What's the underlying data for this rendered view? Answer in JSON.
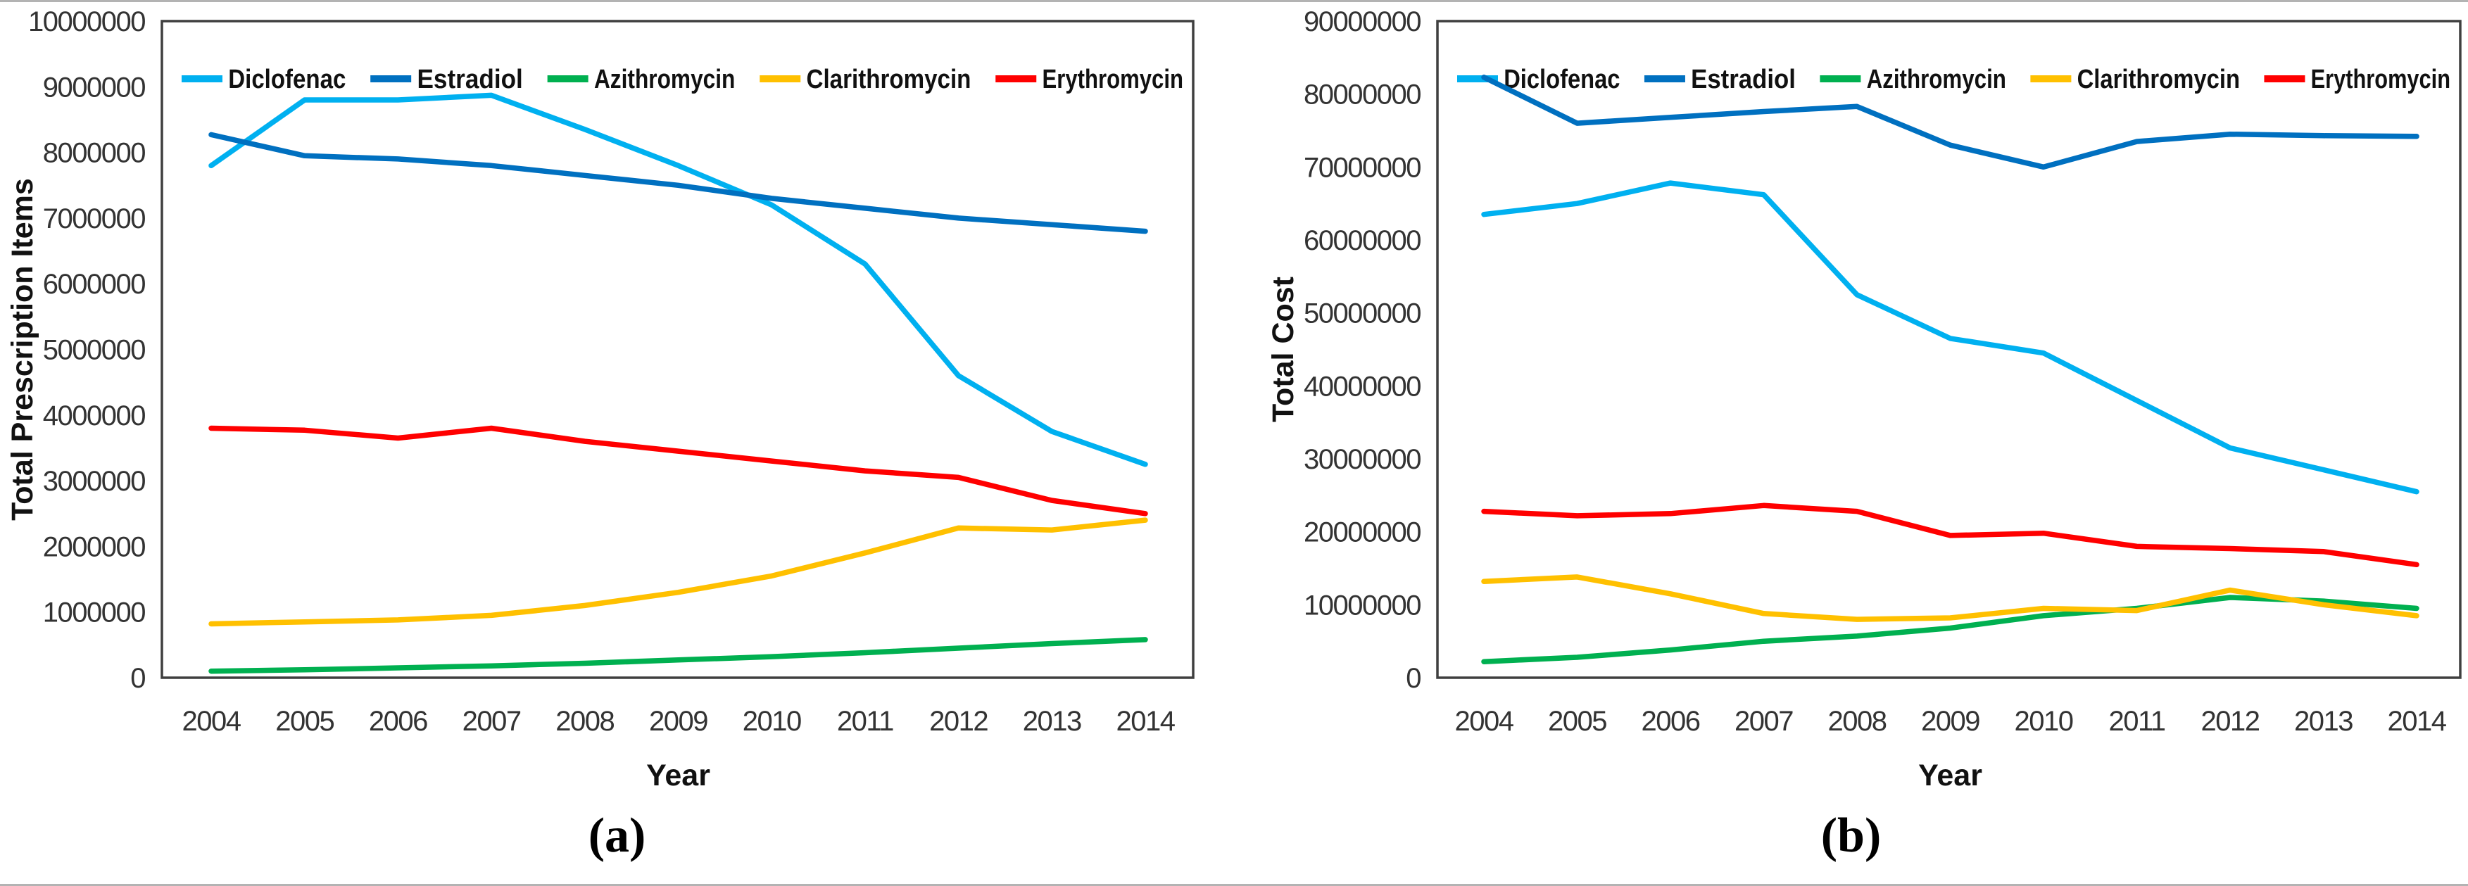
{
  "figure": {
    "description": "Two-panel line chart comparing five drugs from 2004 to 2014",
    "panel_captions": [
      "(a)",
      "(b)"
    ]
  },
  "colors": {
    "diclofenac": "#00B0F0",
    "estradiol": "#0070C0",
    "azithromycin": "#00B050",
    "clarithromycin": "#FFC000",
    "erythromycin": "#FF0000",
    "plot_border": "#3f3f3f",
    "tick_text": "#333333",
    "page_rule": "#b3b3b3"
  },
  "chart_data": [
    {
      "id": "a",
      "type": "line",
      "caption": "(a)",
      "xlabel": "Year",
      "ylabel": "Total Prescription Items",
      "x": [
        2004,
        2005,
        2006,
        2007,
        2008,
        2009,
        2010,
        2011,
        2012,
        2013,
        2014
      ],
      "x_labels": [
        "2004",
        "2005",
        "2006",
        "2007",
        "2008",
        "2009",
        "2010",
        "2011",
        "2012",
        "2013",
        "2014"
      ],
      "ylim": [
        0,
        10000000
      ],
      "ytick_step": 1000000,
      "yticks": [
        "0",
        "1000000",
        "2000000",
        "3000000",
        "4000000",
        "5000000",
        "6000000",
        "7000000",
        "8000000",
        "9000000",
        "10000000"
      ],
      "grid": false,
      "legend_position": "top-inside",
      "series": [
        {
          "name": "Diclofenac",
          "color": "#00B0F0",
          "values": [
            7800000,
            8800000,
            8800000,
            8870000,
            8350000,
            7800000,
            7200000,
            6300000,
            4600000,
            3750000,
            3250000
          ]
        },
        {
          "name": "Estradiol",
          "color": "#0070C0",
          "values": [
            8270000,
            7950000,
            7900000,
            7800000,
            7650000,
            7500000,
            7300000,
            7150000,
            7000000,
            6900000,
            6800000
          ]
        },
        {
          "name": "Azithromycin",
          "color": "#00B050",
          "values": [
            100000,
            120000,
            150000,
            180000,
            220000,
            270000,
            320000,
            380000,
            450000,
            520000,
            580000
          ]
        },
        {
          "name": "Clarithromycin",
          "color": "#FFC000",
          "values": [
            820000,
            850000,
            880000,
            950000,
            1100000,
            1300000,
            1550000,
            1900000,
            2280000,
            2250000,
            2400000
          ]
        },
        {
          "name": "Erythromycin",
          "color": "#FF0000",
          "values": [
            3800000,
            3770000,
            3650000,
            3800000,
            3600000,
            3450000,
            3300000,
            3150000,
            3050000,
            2700000,
            2500000
          ]
        }
      ]
    },
    {
      "id": "b",
      "type": "line",
      "caption": "(b)",
      "xlabel": "Year",
      "ylabel": "Total Cost",
      "x": [
        2004,
        2005,
        2006,
        2007,
        2008,
        2009,
        2010,
        2011,
        2012,
        2013,
        2014
      ],
      "x_labels": [
        "2004",
        "2005",
        "2006",
        "2007",
        "2008",
        "2009",
        "2010",
        "2011",
        "2012",
        "2013",
        "2014"
      ],
      "ylim": [
        0,
        90000000
      ],
      "ytick_step": 10000000,
      "yticks": [
        "0",
        "10000000",
        "20000000",
        "30000000",
        "40000000",
        "50000000",
        "60000000",
        "70000000",
        "80000000",
        "90000000"
      ],
      "grid": false,
      "legend_position": "top-inside",
      "series": [
        {
          "name": "Diclofenac",
          "color": "#00B0F0",
          "values": [
            63500000,
            65000000,
            67800000,
            66200000,
            52500000,
            46500000,
            44500000,
            38000000,
            31500000,
            28500000,
            25500000
          ]
        },
        {
          "name": "Estradiol",
          "color": "#0070C0",
          "values": [
            82300000,
            76000000,
            76800000,
            77600000,
            78300000,
            73000000,
            70000000,
            73500000,
            74500000,
            74300000,
            74200000
          ]
        },
        {
          "name": "Azithromycin",
          "color": "#00B050",
          "values": [
            2200000,
            2800000,
            3800000,
            5000000,
            5700000,
            6800000,
            8500000,
            9500000,
            11000000,
            10500000,
            9500000
          ]
        },
        {
          "name": "Clarithromycin",
          "color": "#FFC000",
          "values": [
            13200000,
            13800000,
            11500000,
            8800000,
            8000000,
            8200000,
            9500000,
            9200000,
            12000000,
            10000000,
            8500000
          ]
        },
        {
          "name": "Erythromycin",
          "color": "#FF0000",
          "values": [
            22800000,
            22200000,
            22500000,
            23600000,
            22800000,
            19500000,
            19800000,
            18000000,
            17700000,
            17300000,
            15500000
          ]
        }
      ]
    }
  ]
}
